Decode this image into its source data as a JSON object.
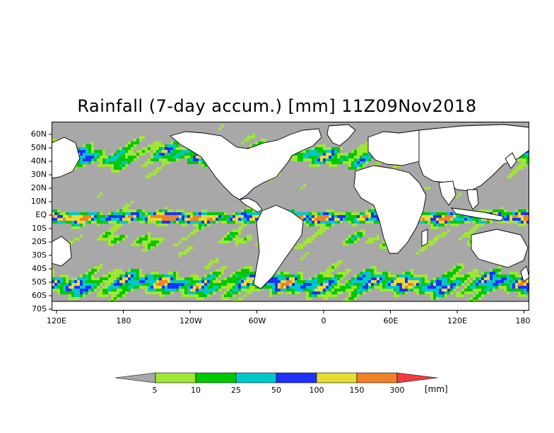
{
  "title": "Rainfall (7-day accum.) [mm] 11Z09Nov2018",
  "lat_labels": [
    "60N",
    "50N",
    "40N",
    "30N",
    "20N",
    "10N",
    "EQ",
    "10S",
    "20S",
    "30S",
    "40S",
    "50S",
    "60S",
    "70S"
  ],
  "lon_labels": [
    "120E",
    "180",
    "120W",
    "60W",
    "0",
    "60E",
    "120E",
    "180"
  ],
  "colorbar": {
    "unit": "[mm]",
    "ticks": [
      "5",
      "10",
      "25",
      "50",
      "100",
      "150",
      "300"
    ],
    "colors": [
      "#a8a8a8",
      "#a0e632",
      "#00c800",
      "#00c8c8",
      "#2030ff",
      "#e6dc32",
      "#f08228",
      "#f03c3c"
    ]
  },
  "colors": {
    "ocean_gray": "#a8a8a8",
    "light_green": "#a0e632",
    "green": "#00c800",
    "cyan": "#00c8c8",
    "blue": "#2030ff",
    "yellow": "#e6dc32",
    "orange": "#f08228",
    "red": "#f03c3c",
    "land_white": "#ffffff",
    "coast": "#000000"
  }
}
